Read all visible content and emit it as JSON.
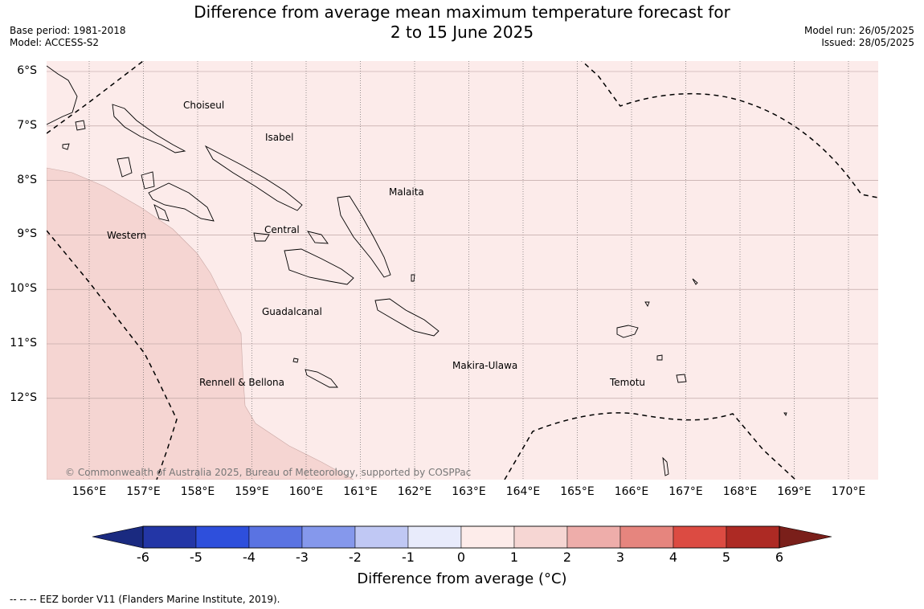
{
  "title": {
    "line1": "Difference from average mean maximum temperature forecast for",
    "line2": "2 to 15 June 2025"
  },
  "meta_left": {
    "base_period": "Base period: 1981-2018",
    "model": "Model: ACCESS-S2"
  },
  "meta_right": {
    "model_run": "Model run: 26/05/2025",
    "issued": "Issued: 28/05/2025"
  },
  "map": {
    "lat_labels": [
      "6°S",
      "7°S",
      "8°S",
      "9°S",
      "10°S",
      "11°S",
      "12°S"
    ],
    "lon_labels": [
      "156°E",
      "157°E",
      "158°E",
      "159°E",
      "160°E",
      "161°E",
      "162°E",
      "163°E",
      "164°E",
      "165°E",
      "166°E",
      "167°E",
      "168°E",
      "169°E",
      "170°E"
    ],
    "provinces": [
      "Choiseul",
      "Isabel",
      "Malaita",
      "Western",
      "Central",
      "Guadalcanal",
      "Rennell & Bellona",
      "Makira-Ulawa",
      "Temotu"
    ],
    "fill_colors": {
      "anomaly_0_1": "#fcebea",
      "anomaly_1_2": "#f5d5d2"
    },
    "copyright": "© Commonwealth of Australia 2025, Bureau of Meteorology, supported by COSPPac"
  },
  "colorbar": {
    "ticks": [
      "-6",
      "-5",
      "-4",
      "-3",
      "-2",
      "-1",
      "0",
      "1",
      "2",
      "3",
      "4",
      "5",
      "6"
    ],
    "colors": [
      "#2336a6",
      "#2e4fdc",
      "#5a73e2",
      "#8598ec",
      "#c0c8f4",
      "#e8ebfb",
      "#fdecea",
      "#f6d6d3",
      "#eeadaa",
      "#e6857e",
      "#dc4b42",
      "#ad2a24"
    ],
    "under_color": "#1a2a80",
    "over_color": "#7a1f1a",
    "label": "Difference from average (°C)"
  },
  "footer": "--  --  -- EEZ border V11 (Flanders Marine Institute, 2019)."
}
